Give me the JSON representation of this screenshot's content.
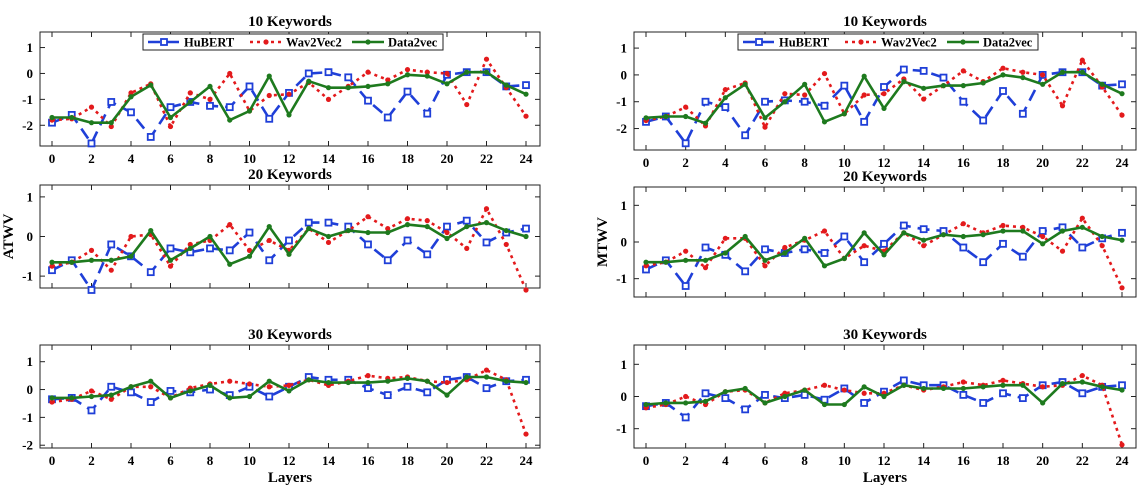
{
  "colors": {
    "HuBERT": "#1f3fd8",
    "Wav2Vec2": "#e31a1c",
    "Data2vec": "#1e7a1e"
  },
  "chart_data": [
    {
      "type": "line",
      "panel": "ATWV-10",
      "title": "10 Keywords",
      "xlabel": "",
      "ylabel": "",
      "ylim": [
        -2.8,
        1.6
      ],
      "yticks": [
        -2,
        -1,
        0,
        1
      ],
      "xticks": [
        0,
        2,
        4,
        6,
        8,
        10,
        12,
        14,
        16,
        18,
        20,
        22,
        24
      ],
      "legend": "top-center",
      "series": [
        {
          "name": "HuBERT",
          "values": [
            -1.9,
            -1.6,
            -2.7,
            -1.1,
            -1.5,
            -2.45,
            -1.3,
            -1.1,
            -1.25,
            -1.3,
            -0.5,
            -1.75,
            -0.75,
            0.0,
            0.05,
            -0.15,
            -1.05,
            -1.7,
            -0.7,
            -1.55,
            -0.05,
            0.05,
            0.05,
            -0.5,
            -0.45
          ]
        },
        {
          "name": "Wav2Vec2",
          "values": [
            -1.8,
            -1.75,
            -1.3,
            -2.05,
            -0.75,
            -0.4,
            -2.05,
            -0.75,
            -1.0,
            0.0,
            -1.45,
            -0.85,
            -0.8,
            -0.35,
            -1.0,
            -0.5,
            0.05,
            -0.25,
            0.15,
            0.05,
            0.0,
            -1.2,
            0.55,
            -0.55,
            -1.65
          ]
        },
        {
          "name": "Data2vec",
          "values": [
            -1.7,
            -1.7,
            -1.9,
            -1.9,
            -0.9,
            -0.45,
            -1.7,
            -1.1,
            -0.5,
            -1.8,
            -1.45,
            -0.1,
            -1.6,
            -0.3,
            -0.55,
            -0.55,
            -0.5,
            -0.4,
            -0.05,
            -0.1,
            -0.4,
            0.05,
            0.05,
            -0.45,
            -0.8
          ]
        }
      ]
    },
    {
      "type": "line",
      "panel": "ATWV-20",
      "title": "20 Keywords",
      "xlabel": "",
      "ylabel": "ATWV",
      "ylim": [
        -1.3,
        1.3
      ],
      "yticks": [
        -1,
        0,
        1
      ],
      "xticks": [],
      "legend": "none",
      "series": [
        {
          "name": "HuBERT",
          "values": [
            -0.85,
            -0.6,
            -1.35,
            -0.2,
            -0.5,
            -0.9,
            -0.3,
            -0.4,
            -0.3,
            -0.35,
            0.1,
            -0.6,
            -0.1,
            0.35,
            0.35,
            0.25,
            -0.2,
            -0.6,
            -0.1,
            -0.45,
            0.25,
            0.4,
            -0.15,
            0.1,
            0.2
          ]
        },
        {
          "name": "Wav2Vec2",
          "values": [
            -0.75,
            -0.65,
            -0.35,
            -0.85,
            0.0,
            0.05,
            -0.75,
            -0.2,
            -0.1,
            0.3,
            -0.35,
            -0.1,
            -0.35,
            0.2,
            -0.15,
            0.15,
            0.5,
            0.2,
            0.45,
            0.4,
            0.1,
            -0.3,
            0.7,
            -0.2,
            -1.35
          ]
        },
        {
          "name": "Data2vec",
          "values": [
            -0.65,
            -0.65,
            -0.6,
            -0.6,
            -0.5,
            0.15,
            -0.6,
            -0.3,
            0.0,
            -0.7,
            -0.5,
            0.25,
            -0.45,
            0.2,
            0.0,
            0.15,
            0.1,
            0.1,
            0.3,
            0.25,
            -0.05,
            0.25,
            0.35,
            0.15,
            0.0
          ]
        }
      ]
    },
    {
      "type": "line",
      "panel": "ATWV-30",
      "title": "30 Keywords",
      "xlabel": "Layers",
      "ylabel": "",
      "ylim": [
        -2.1,
        1.6
      ],
      "yticks": [
        -2,
        -1,
        0,
        1
      ],
      "xticks": [
        0,
        2,
        4,
        6,
        8,
        10,
        12,
        14,
        16,
        18,
        20,
        22,
        24
      ],
      "legend": "none",
      "series": [
        {
          "name": "HuBERT",
          "values": [
            -0.35,
            -0.3,
            -0.75,
            0.1,
            -0.1,
            -0.45,
            -0.05,
            -0.1,
            0.0,
            -0.2,
            0.1,
            -0.25,
            0.1,
            0.45,
            0.35,
            0.35,
            0.05,
            -0.2,
            0.1,
            -0.1,
            0.35,
            0.45,
            0.05,
            0.3,
            0.35
          ]
        },
        {
          "name": "Wav2Vec2",
          "values": [
            -0.45,
            -0.35,
            -0.05,
            -0.35,
            0.1,
            0.1,
            -0.3,
            0.05,
            0.2,
            0.3,
            0.2,
            0.1,
            0.15,
            0.35,
            0.15,
            0.3,
            0.5,
            0.4,
            0.45,
            0.3,
            0.25,
            0.35,
            0.7,
            0.35,
            -1.6
          ]
        },
        {
          "name": "Data2vec",
          "values": [
            -0.3,
            -0.3,
            -0.25,
            -0.2,
            0.1,
            0.3,
            -0.3,
            -0.05,
            0.15,
            -0.3,
            -0.25,
            0.3,
            -0.05,
            0.35,
            0.25,
            0.25,
            0.25,
            0.3,
            0.4,
            0.3,
            -0.2,
            0.45,
            0.45,
            0.3,
            0.25
          ]
        }
      ]
    },
    {
      "type": "line",
      "panel": "MTWV-10",
      "title": "10 Keywords",
      "xlabel": "",
      "ylabel": "",
      "ylim": [
        -2.8,
        1.6
      ],
      "yticks": [
        -2,
        -1,
        0,
        1
      ],
      "xticks": [
        0,
        2,
        4,
        6,
        8,
        10,
        12,
        14,
        16,
        18,
        20,
        22,
        24
      ],
      "legend": "top-center",
      "series": [
        {
          "name": "HuBERT",
          "values": [
            -1.75,
            -1.55,
            -2.55,
            -1.0,
            -1.2,
            -2.25,
            -1.0,
            -0.95,
            -1.0,
            -1.15,
            -0.4,
            -1.75,
            -0.45,
            0.2,
            0.15,
            -0.1,
            -1.0,
            -1.7,
            -0.6,
            -1.45,
            0.0,
            0.1,
            0.1,
            -0.4,
            -0.35
          ]
        },
        {
          "name": "Wav2Vec2",
          "values": [
            -1.7,
            -1.55,
            -1.2,
            -1.9,
            -0.55,
            -0.3,
            -1.95,
            -0.7,
            -0.75,
            0.05,
            -1.45,
            -0.75,
            -0.7,
            -0.15,
            -0.9,
            -0.4,
            0.15,
            -0.25,
            0.25,
            0.1,
            0.0,
            -1.15,
            0.55,
            -0.45,
            -1.5
          ]
        },
        {
          "name": "Data2vec",
          "values": [
            -1.6,
            -1.55,
            -1.55,
            -1.8,
            -0.85,
            -0.35,
            -1.6,
            -1.0,
            -0.35,
            -1.75,
            -1.45,
            -0.05,
            -1.25,
            -0.25,
            -0.5,
            -0.4,
            -0.4,
            -0.3,
            0.0,
            -0.1,
            -0.35,
            0.1,
            0.1,
            -0.35,
            -0.7
          ]
        }
      ]
    },
    {
      "type": "line",
      "panel": "MTWV-20",
      "title": "20 Keywords",
      "xlabel": "",
      "ylabel": "MTWV",
      "ylim": [
        -1.5,
        1.5
      ],
      "yticks": [
        -1,
        0,
        1
      ],
      "xticks": [],
      "legend": "none",
      "series": [
        {
          "name": "HuBERT",
          "values": [
            -0.75,
            -0.5,
            -1.2,
            -0.15,
            -0.35,
            -0.8,
            -0.2,
            -0.3,
            -0.2,
            -0.3,
            0.15,
            -0.55,
            -0.05,
            0.45,
            0.35,
            0.3,
            -0.15,
            -0.55,
            -0.05,
            -0.4,
            0.3,
            0.4,
            -0.15,
            0.1,
            0.25
          ]
        },
        {
          "name": "Wav2Vec2",
          "values": [
            -0.65,
            -0.55,
            -0.25,
            -0.7,
            0.1,
            0.1,
            -0.65,
            -0.15,
            0.05,
            0.3,
            -0.45,
            -0.1,
            -0.25,
            0.25,
            -0.1,
            0.2,
            0.5,
            0.25,
            0.45,
            0.4,
            0.15,
            -0.25,
            0.65,
            -0.1,
            -1.25
          ]
        },
        {
          "name": "Data2vec",
          "values": [
            -0.55,
            -0.55,
            -0.5,
            -0.5,
            -0.3,
            0.15,
            -0.5,
            -0.3,
            0.1,
            -0.65,
            -0.45,
            0.25,
            -0.35,
            0.25,
            0.05,
            0.2,
            0.15,
            0.2,
            0.3,
            0.3,
            -0.05,
            0.3,
            0.4,
            0.15,
            0.05
          ]
        }
      ]
    },
    {
      "type": "line",
      "panel": "MTWV-30",
      "title": "30 Keywords",
      "xlabel": "Layers",
      "ylabel": "",
      "ylim": [
        -1.6,
        1.6
      ],
      "yticks": [
        -1,
        0,
        1
      ],
      "xticks": [
        0,
        2,
        4,
        6,
        8,
        10,
        12,
        14,
        16,
        18,
        20,
        22,
        24
      ],
      "legend": "none",
      "series": [
        {
          "name": "HuBERT",
          "values": [
            -0.3,
            -0.2,
            -0.65,
            0.1,
            -0.05,
            -0.4,
            0.05,
            -0.05,
            0.05,
            -0.1,
            0.25,
            -0.2,
            0.15,
            0.5,
            0.35,
            0.35,
            0.05,
            -0.2,
            0.1,
            -0.05,
            0.35,
            0.45,
            0.1,
            0.3,
            0.35
          ]
        },
        {
          "name": "Wav2Vec2",
          "values": [
            -0.35,
            -0.25,
            0.0,
            -0.25,
            0.15,
            0.2,
            -0.2,
            0.1,
            0.2,
            0.35,
            0.2,
            0.1,
            0.1,
            0.35,
            0.2,
            0.3,
            0.45,
            0.35,
            0.5,
            0.4,
            0.3,
            0.35,
            0.65,
            0.35,
            -1.5
          ]
        },
        {
          "name": "Data2vec",
          "values": [
            -0.25,
            -0.2,
            -0.2,
            -0.15,
            0.15,
            0.25,
            -0.2,
            0.0,
            0.2,
            -0.25,
            -0.25,
            0.3,
            0.0,
            0.35,
            0.25,
            0.25,
            0.25,
            0.3,
            0.35,
            0.35,
            -0.2,
            0.4,
            0.45,
            0.3,
            0.2
          ]
        }
      ]
    }
  ]
}
